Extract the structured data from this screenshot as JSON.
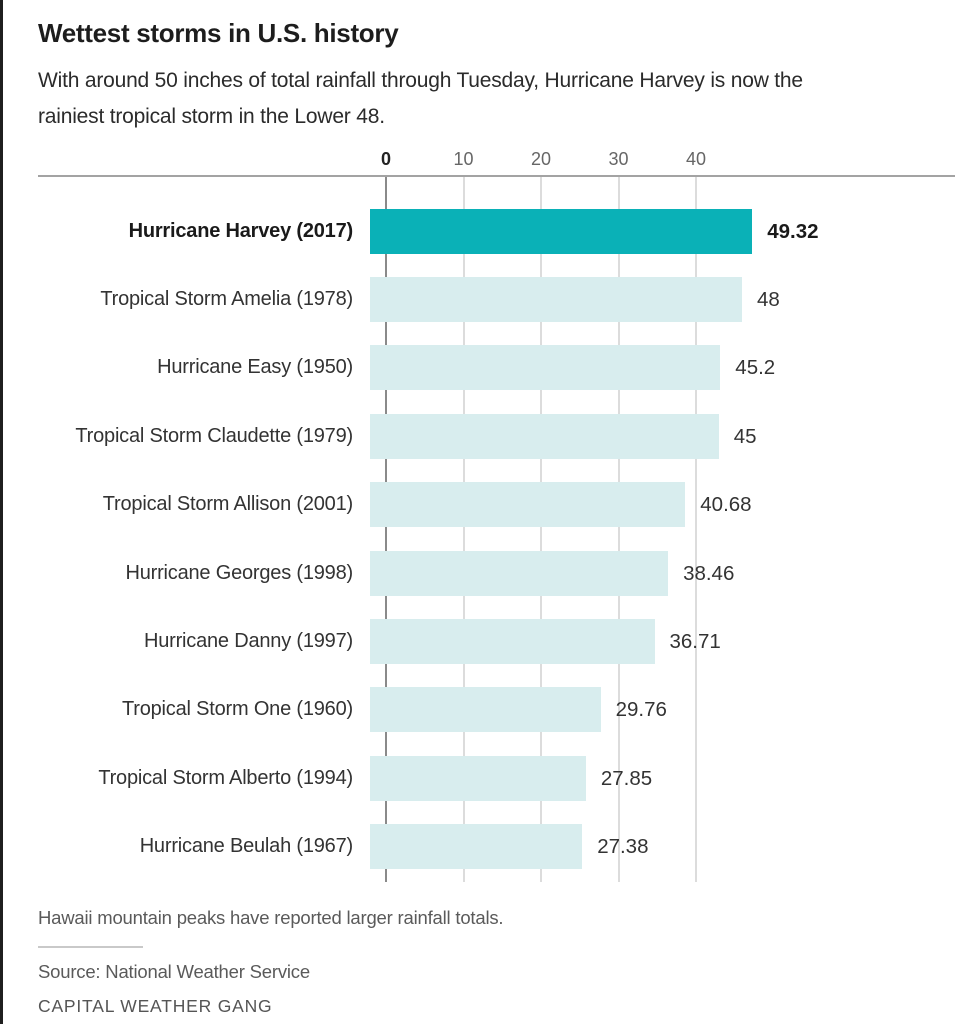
{
  "page": {
    "background": "#ffffff",
    "left_edge_color": "#1f1f1f"
  },
  "header": {
    "title": "Wettest storms in U.S. history",
    "subtitle_lines": [
      "With around 50 inches of total rainfall through Tuesday, Hurricane Harvey is now the",
      "rainiest tropical storm in the Lower 48."
    ]
  },
  "chart_data": {
    "type": "bar",
    "orientation": "horizontal",
    "unit": "inches of total rainfall",
    "categories": [
      "Hurricane Harvey (2017)",
      "Tropical Storm Amelia (1978)",
      "Hurricane Easy (1950)",
      "Tropical Storm Claudette (1979)",
      "Tropical Storm Allison (2001)",
      "Hurricane Georges (1998)",
      "Hurricane Danny (1997)",
      "Tropical Storm One (1960)",
      "Tropical Storm Alberto (1994)",
      "Hurricane Beulah (1967)"
    ],
    "values": [
      49.32,
      48,
      45.2,
      45,
      40.68,
      38.46,
      36.71,
      29.76,
      27.85,
      27.38
    ],
    "value_labels": [
      "49.32",
      "48",
      "45.2",
      "45",
      "40.68",
      "38.46",
      "36.71",
      "29.76",
      "27.85",
      "27.38"
    ],
    "highlight_index": 0,
    "x_tick_values": [
      0,
      10,
      20,
      30,
      40
    ],
    "x_tick_labels": [
      "0",
      "10",
      "20",
      "30",
      "40"
    ],
    "xlim": [
      0,
      50
    ],
    "grid": true,
    "legend": false,
    "colors": {
      "highlight_bar": "#0ab1b7",
      "bar": "#d8edee",
      "gridline": "#dcdcdc",
      "zero_axis": "#8a8a8a",
      "axis_rule": "#a3a3a3"
    }
  },
  "footer": {
    "note": "Hawaii mountain peaks have reported larger rainfall totals.",
    "source": "Source: National Weather Service",
    "credit": "CAPITAL WEATHER GANG"
  }
}
